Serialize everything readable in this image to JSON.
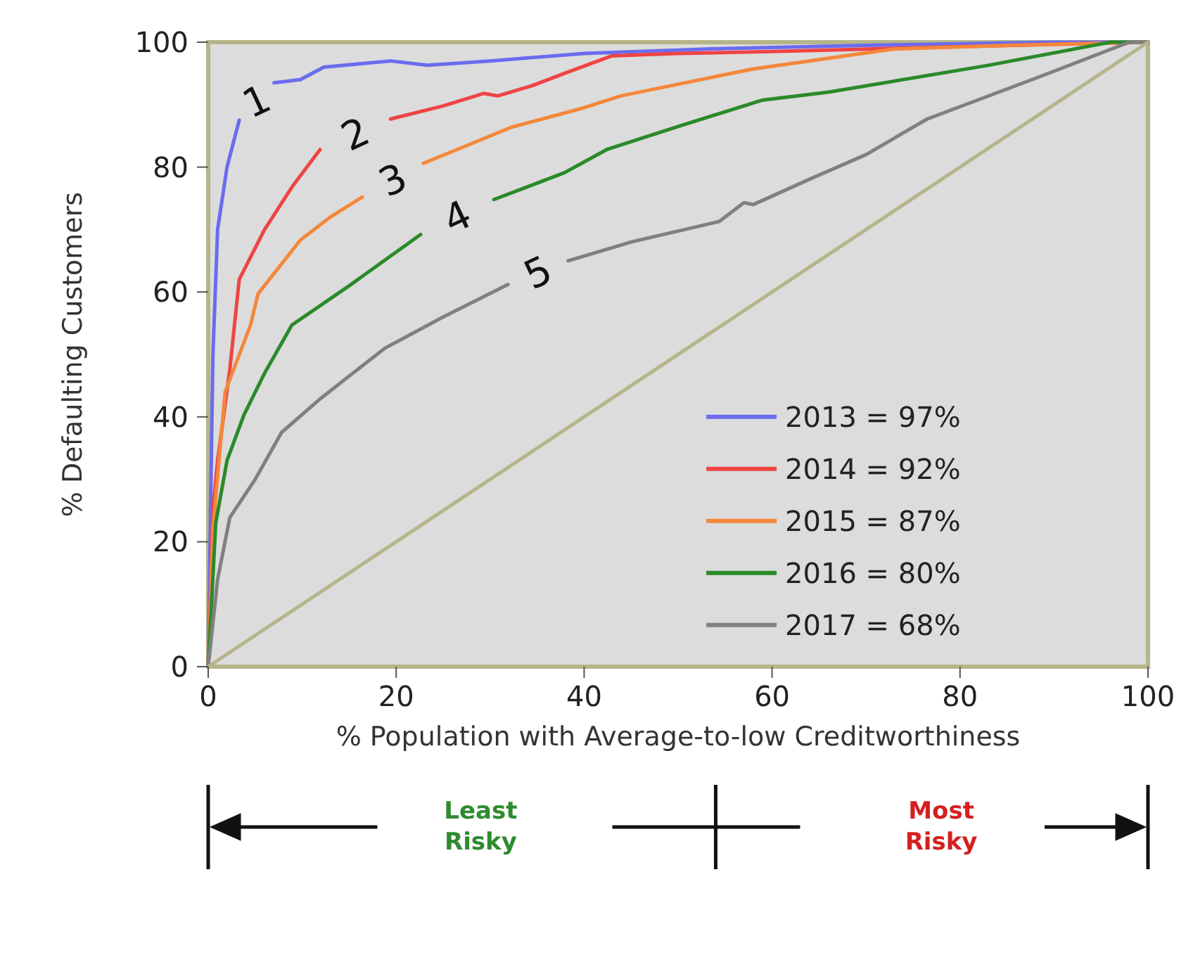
{
  "chart_data": {
    "type": "line",
    "xlabel": "% Population with Average-to-low Creditworthiness",
    "ylabel": "% Defaulting Customers",
    "xlim": [
      0,
      100
    ],
    "ylim": [
      0,
      100
    ],
    "xticks": [
      0,
      20,
      40,
      60,
      80,
      100
    ],
    "yticks": [
      0,
      20,
      40,
      60,
      80,
      100
    ],
    "grid": false,
    "legend": "bottom right",
    "line_style": "solid",
    "marker": "none",
    "series": [
      {
        "name": "2013 = 97%",
        "color": "#6b6bf0",
        "x": [
          0,
          0.3,
          0.5,
          1,
          2,
          3.3,
          5,
          7,
          9.8,
          12.3,
          19.4,
          23.3,
          30,
          40,
          55,
          70,
          90,
          100
        ],
        "values": [
          0,
          30,
          50,
          70,
          80,
          87.5,
          null,
          93.5,
          94,
          96,
          97,
          96.3,
          97,
          98.2,
          99,
          99.5,
          100,
          100
        ]
      },
      {
        "name": "2014 = 92%",
        "color": "#ef4444",
        "x": [
          0,
          0.5,
          1,
          2.3,
          3.3,
          6,
          9,
          11.9,
          15,
          19.4,
          25,
          29.3,
          30.8,
          34.4,
          37.9,
          42.9,
          50,
          60,
          80,
          100
        ],
        "values": [
          0,
          25,
          33,
          47.6,
          62,
          70,
          77,
          82.8,
          null,
          87.7,
          89.8,
          91.8,
          91.4,
          93,
          95,
          97.8,
          98.2,
          98.5,
          99.3,
          100
        ]
      },
      {
        "name": "2015 = 87%",
        "color": "#f4873a",
        "x": [
          0,
          0.5,
          1.8,
          4.5,
          5.3,
          9.8,
          13,
          16.4,
          20,
          22.9,
          32.3,
          40,
          43.9,
          57.9,
          72.9,
          85,
          100
        ],
        "values": [
          0,
          22,
          44,
          54.7,
          59.7,
          68.3,
          72,
          75.2,
          null,
          80.6,
          86.4,
          89.5,
          91.4,
          95.7,
          98.9,
          99.5,
          100
        ]
      },
      {
        "name": "2016 = 80%",
        "color": "#2a8a2a",
        "x": [
          0,
          0.8,
          2,
          3.8,
          6,
          8.9,
          15,
          22.6,
          27,
          30.4,
          37.9,
          42.4,
          50,
          58.9,
          66,
          83,
          96,
          100
        ],
        "values": [
          0,
          23,
          33,
          40.3,
          47,
          54.7,
          61,
          69.2,
          null,
          74.8,
          79.1,
          82.8,
          86.5,
          90.7,
          92,
          96.3,
          100,
          100
        ]
      },
      {
        "name": "2017 = 68%",
        "color": "#808080",
        "x": [
          0,
          1,
          2.3,
          5,
          7.8,
          12,
          18.8,
          25,
          31.9,
          35,
          38.3,
          45,
          54.4,
          57,
          58,
          63.9,
          70,
          76.5,
          88,
          98,
          100
        ],
        "values": [
          0,
          14,
          23.9,
          30,
          37.5,
          43,
          51,
          56,
          61.2,
          null,
          65,
          68,
          71.3,
          74.3,
          74,
          78,
          82,
          87.7,
          94.2,
          100,
          100
        ]
      },
      {
        "color": "#b5b58a",
        "x": [
          0,
          100
        ],
        "values": [
          0,
          100
        ]
      }
    ],
    "annotations": [
      "1",
      "2",
      "3",
      "4",
      "5",
      "Least Risky",
      "Most Risky"
    ]
  }
}
